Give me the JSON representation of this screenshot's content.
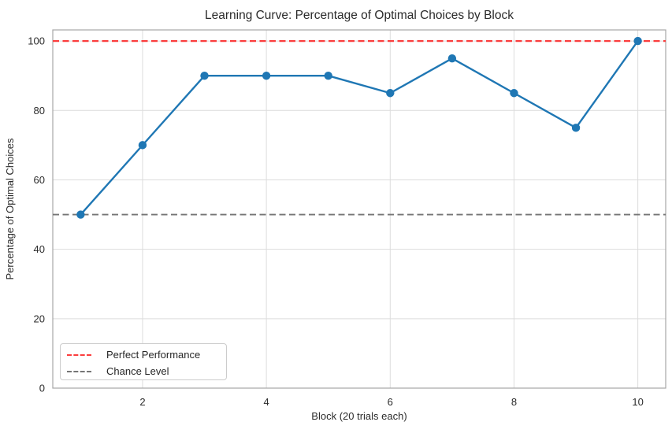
{
  "chart_data": {
    "type": "line",
    "title": "Learning Curve: Percentage of Optimal Choices by Block",
    "xlabel": "Block (20 trials each)",
    "ylabel": "Percentage of Optimal Choices",
    "x": [
      1,
      2,
      3,
      4,
      5,
      6,
      7,
      8,
      9,
      10
    ],
    "series": [
      {
        "name": "Percentage of Optimal Choices",
        "values": [
          50,
          70,
          90,
          90,
          90,
          85,
          95,
          85,
          75,
          100
        ],
        "color": "#1f77b4",
        "marker": "circle",
        "line_width": 2.4,
        "marker_radius": 5.2
      }
    ],
    "reference_lines": [
      {
        "label": "Perfect Performance",
        "y": 100,
        "color": "#fb3e3e",
        "linestyle": "dashed",
        "line_width": 2.2
      },
      {
        "label": "Chance Level",
        "y": 50,
        "color": "#757575",
        "linestyle": "dashed",
        "line_width": 1.8
      }
    ],
    "xticks": [
      2,
      4,
      6,
      8,
      10
    ],
    "yticks": [
      0,
      20,
      40,
      60,
      80,
      100
    ],
    "xlim": [
      0.55,
      10.45
    ],
    "ylim": [
      0,
      103.2
    ],
    "grid": true,
    "grid_color": "#dcdcdc",
    "axes_edge_color": "#a6a6a6",
    "legend_position": "lower left",
    "legend_items": [
      "Perfect Performance",
      "Chance Level"
    ]
  }
}
